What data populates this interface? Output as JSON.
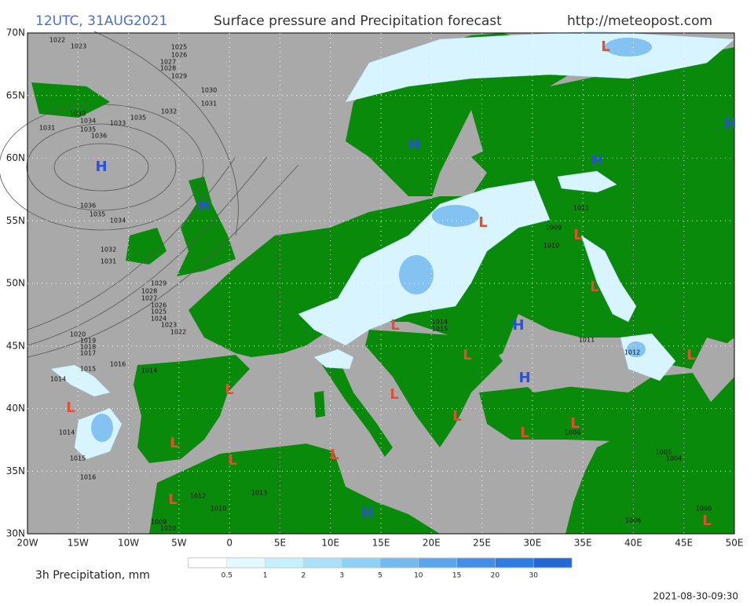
{
  "header": {
    "title": "12UTC, 31AUG2021",
    "subtitle": "Surface pressure and Precipitation forecast",
    "url": "http://meteopost.com"
  },
  "map": {
    "lat_labels": [
      "70N",
      "65N",
      "60N",
      "55N",
      "50N",
      "45N",
      "40N",
      "35N",
      "30N"
    ],
    "lon_labels": [
      "20W",
      "15W",
      "10W",
      "5W",
      "0",
      "5E",
      "10E",
      "15E",
      "20E",
      "25E",
      "30E",
      "35E",
      "40E",
      "45E",
      "50E"
    ],
    "centers": [
      "H",
      "H",
      "H",
      "H",
      "H",
      "H",
      "H",
      "H",
      "L",
      "L",
      "L",
      "L",
      "L",
      "L",
      "L",
      "L",
      "L",
      "L",
      "L",
      "L",
      "L",
      "L",
      "L",
      "L",
      "L",
      "L"
    ],
    "isobar_labels": [
      "1022",
      "1023",
      "1025",
      "1026",
      "1027",
      "1028",
      "1029",
      "1030",
      "1031",
      "1032",
      "1033",
      "1034",
      "1035",
      "1036",
      "1031",
      "1033",
      "1035",
      "1034",
      "1035",
      "1036",
      "1032",
      "1031",
      "1029",
      "1028",
      "1027",
      "1026",
      "1025",
      "1024",
      "1023",
      "1022",
      "1020",
      "1019",
      "1018",
      "1017",
      "1016",
      "1015",
      "1014",
      "1014",
      "1015",
      "1016",
      "1014",
      "1013",
      "1012",
      "1010",
      "1009",
      "1010",
      "1011",
      "1009",
      "1010",
      "1014",
      "1015",
      "1012",
      "1011",
      "1008",
      "1005",
      "1004",
      "1000",
      "1006"
    ]
  },
  "legend": {
    "title": "3h Precipitation, mm",
    "labels": [
      "0.5",
      "1",
      "2",
      "3",
      "5",
      "10",
      "15",
      "20",
      "30"
    ],
    "colors": [
      "#ffffff",
      "#e2f9ff",
      "#c6f1fb",
      "#a9e2f8",
      "#8fd0f6",
      "#72bbf0",
      "#5aa6ec",
      "#438fe6",
      "#2e7ce0",
      "#2268d4"
    ]
  },
  "footer": {
    "timestamp": "2021-08-30-09:30"
  }
}
